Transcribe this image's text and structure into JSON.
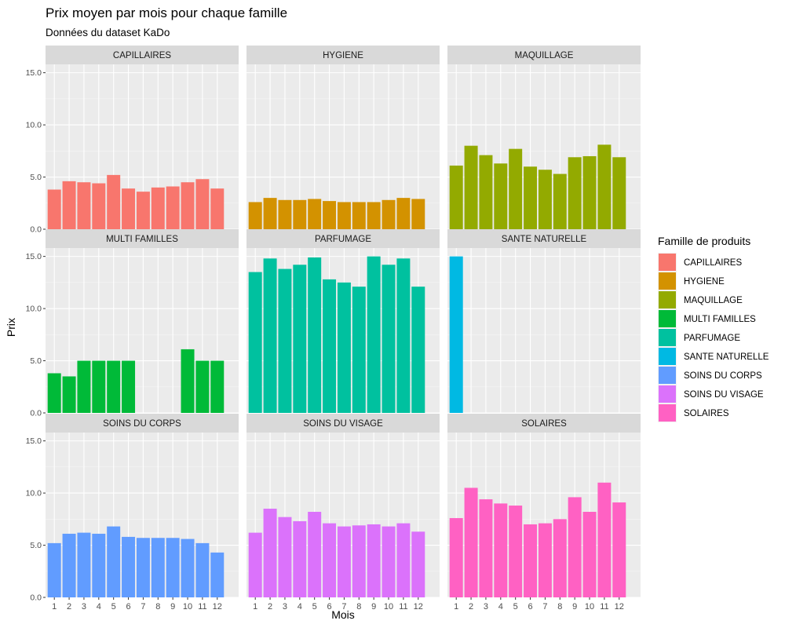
{
  "chart_data": {
    "type": "bar",
    "title": "Prix moyen par mois pour chaque famille",
    "subtitle": "Données du dataset KaDo",
    "xlabel": "Mois",
    "ylabel": "Prix",
    "ylim": [
      0,
      15.8
    ],
    "yticks": [
      "0.0",
      "5.0",
      "10.0",
      "15.0"
    ],
    "categories": [
      "1",
      "2",
      "3",
      "4",
      "5",
      "6",
      "7",
      "8",
      "9",
      "10",
      "11",
      "12"
    ],
    "grid": true,
    "facet_layout": "3x3",
    "legend": {
      "title": "Famille de produits",
      "placement": "right"
    },
    "series": [
      {
        "name": "CAPILLAIRES",
        "color": "#F8766D",
        "values": [
          3.8,
          4.6,
          4.5,
          4.4,
          5.2,
          3.9,
          3.6,
          4.0,
          4.1,
          4.5,
          4.8,
          3.9
        ]
      },
      {
        "name": "HYGIENE",
        "color": "#D39200",
        "values": [
          2.6,
          3.0,
          2.8,
          2.8,
          2.9,
          2.7,
          2.6,
          2.6,
          2.6,
          2.8,
          3.0,
          2.9
        ]
      },
      {
        "name": "MAQUILLAGE",
        "color": "#93AA00",
        "values": [
          6.1,
          8.0,
          7.1,
          6.3,
          7.7,
          6.0,
          5.7,
          5.3,
          6.9,
          7.0,
          8.1,
          6.9
        ]
      },
      {
        "name": "MULTI FAMILLES",
        "color": "#00BA38",
        "values": [
          3.8,
          3.5,
          5.0,
          5.0,
          5.0,
          5.0,
          null,
          null,
          null,
          6.1,
          5.0,
          5.0
        ]
      },
      {
        "name": "PARFUMAGE",
        "color": "#00C19F",
        "values": [
          13.5,
          14.8,
          13.8,
          14.2,
          14.9,
          12.8,
          12.5,
          12.1,
          15.0,
          14.2,
          14.8,
          12.1
        ]
      },
      {
        "name": "SANTE NATURELLE",
        "color": "#00B9E3",
        "values": [
          15.0,
          null,
          null,
          null,
          null,
          null,
          null,
          null,
          null,
          null,
          null,
          null
        ]
      },
      {
        "name": "SOINS DU CORPS",
        "color": "#619CFF",
        "values": [
          5.2,
          6.1,
          6.2,
          6.1,
          6.8,
          5.8,
          5.7,
          5.7,
          5.7,
          5.6,
          5.2,
          4.3
        ]
      },
      {
        "name": "SOINS DU VISAGE",
        "color": "#DB72FB",
        "values": [
          6.2,
          8.5,
          7.7,
          7.3,
          8.2,
          7.1,
          6.8,
          6.9,
          7.0,
          6.8,
          7.1,
          6.3
        ]
      },
      {
        "name": "SOLAIRES",
        "color": "#FF61C3",
        "values": [
          7.6,
          10.5,
          9.4,
          9.0,
          8.8,
          7.0,
          7.1,
          7.5,
          9.6,
          8.2,
          11.0,
          9.1
        ]
      }
    ]
  }
}
